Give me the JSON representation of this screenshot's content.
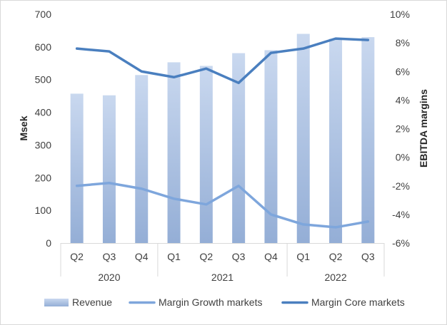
{
  "chart_data": {
    "type": "bar",
    "title": "",
    "categories": [
      "Q2",
      "Q3",
      "Q4",
      "Q1",
      "Q2",
      "Q3",
      "Q4",
      "Q1",
      "Q2",
      "Q3"
    ],
    "year_groups": [
      {
        "label": "2020",
        "count": 3
      },
      {
        "label": "2021",
        "count": 4
      },
      {
        "label": "2022",
        "count": 3
      }
    ],
    "ylabel": "Msek",
    "ylim": [
      0,
      700
    ],
    "yticks": [
      0,
      100,
      200,
      300,
      400,
      500,
      600,
      700
    ],
    "y2label": "EBITDA  margins",
    "y2lim": [
      -6,
      10
    ],
    "y2ticks": [
      "-6%",
      "-4%",
      "-2%",
      "0%",
      "2%",
      "4%",
      "6%",
      "8%",
      "10%"
    ],
    "y2tick_values": [
      -6,
      -4,
      -2,
      0,
      2,
      4,
      6,
      8,
      10
    ],
    "series": [
      {
        "name": "Revenue",
        "type": "bar",
        "axis": "left",
        "color": "#9bb7e0",
        "values": [
          457,
          452,
          514,
          553,
          542,
          581,
          590,
          640,
          625,
          630
        ]
      },
      {
        "name": "Margin Growth markets",
        "type": "line",
        "axis": "right",
        "color": "#7ea6dc",
        "values": [
          -2.0,
          -1.8,
          -2.2,
          -2.9,
          -3.3,
          -2.0,
          -4.0,
          -4.7,
          -4.9,
          -4.5
        ]
      },
      {
        "name": "Margin Core markets",
        "type": "line",
        "axis": "right",
        "color": "#4a7fbf",
        "values": [
          7.6,
          7.4,
          6.0,
          5.6,
          6.2,
          5.2,
          7.3,
          7.6,
          8.3,
          8.2
        ]
      }
    ],
    "legend": "bottom"
  }
}
